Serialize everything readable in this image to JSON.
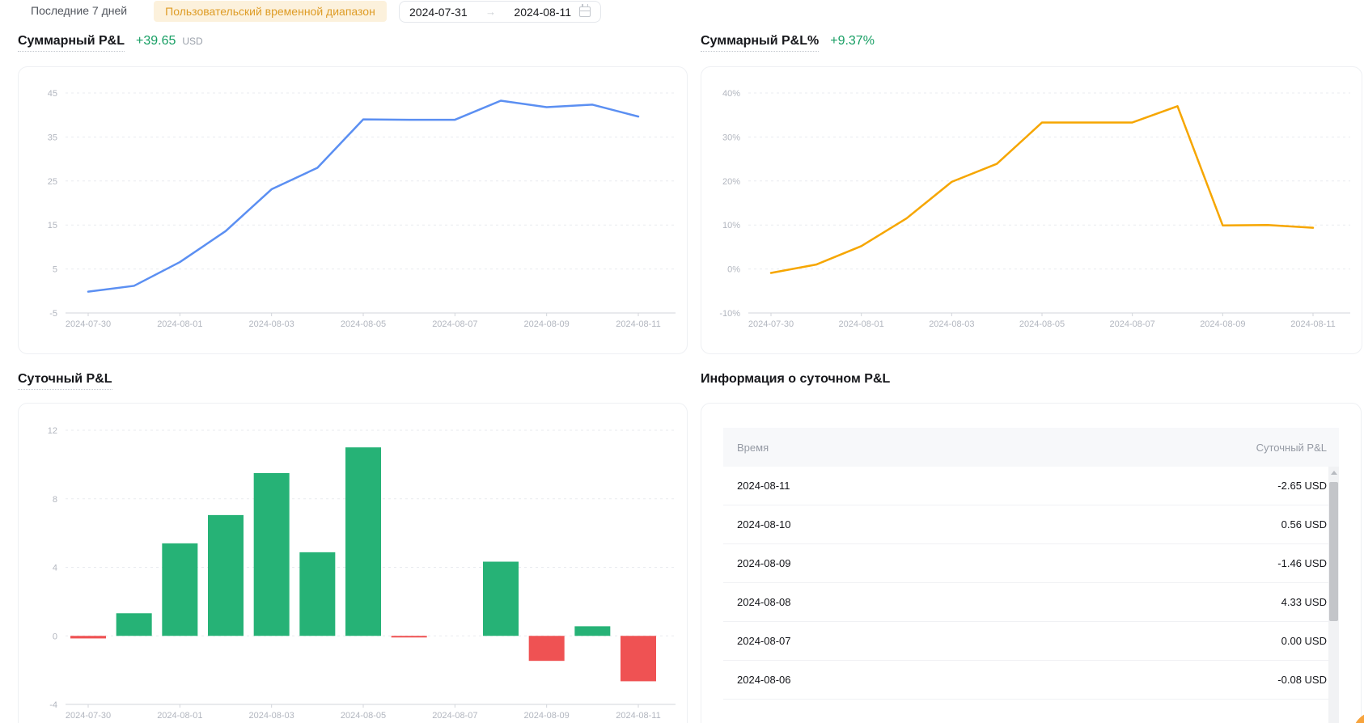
{
  "toolbar": {
    "last7_label": "Последние 7 дней",
    "custom_range_label": "Пользовательский временной диапазон",
    "date_from": "2024-07-31",
    "date_to": "2024-08-11",
    "arrow_glyph": "→"
  },
  "sections": {
    "total_pnl": {
      "title": "Суммарный P&L",
      "value": "+39.65",
      "unit": "USD"
    },
    "total_pnl_pct": {
      "title": "Суммарный P&L%",
      "value": "+9.37%"
    },
    "daily_pnl": {
      "title": "Суточный P&L"
    },
    "daily_info": {
      "title": "Информация о суточном P&L"
    }
  },
  "colors": {
    "accent_orange": "#de9c26",
    "accent_orange_bg": "#fcf1dc",
    "positive_green_text": "#169e63",
    "line_blue": "#5b8ff2",
    "line_orange": "#f6a600",
    "bar_green": "#26b276",
    "bar_red": "#ef5253",
    "fab_orange": "#f7a33c"
  },
  "chart_data": [
    {
      "id": "total_pnl_usd",
      "type": "line",
      "title": "Суммарный P&L",
      "unit": "USD",
      "color": "#5b8ff2",
      "grid": true,
      "ylim": [
        -5,
        45
      ],
      "y_ticks": [
        45,
        35,
        25,
        15,
        5,
        -5
      ],
      "y_tick_suffix": "",
      "x": [
        "2024-07-30",
        "2024-07-31",
        "2024-08-01",
        "2024-08-02",
        "2024-08-03",
        "2024-08-04",
        "2024-08-05",
        "2024-08-06",
        "2024-08-07",
        "2024-08-08",
        "2024-08-09",
        "2024-08-10",
        "2024-08-11"
      ],
      "values": [
        -0.15,
        1.17,
        6.57,
        13.62,
        23.12,
        28.0,
        39.0,
        38.92,
        38.92,
        43.25,
        41.79,
        42.35,
        39.65
      ],
      "x_tick_labels": [
        "2024-07-30",
        "2024-08-01",
        "2024-08-03",
        "2024-08-05",
        "2024-08-07",
        "2024-08-09",
        "2024-08-11"
      ]
    },
    {
      "id": "total_pnl_pct",
      "type": "line",
      "title": "Суммарный P&L%",
      "unit": "%",
      "color": "#f6a600",
      "grid": true,
      "ylim": [
        -10,
        40
      ],
      "y_ticks": [
        40,
        30,
        20,
        10,
        0,
        -10
      ],
      "y_tick_suffix": "%",
      "x": [
        "2024-07-30",
        "2024-07-31",
        "2024-08-01",
        "2024-08-02",
        "2024-08-03",
        "2024-08-04",
        "2024-08-05",
        "2024-08-06",
        "2024-08-07",
        "2024-08-08",
        "2024-08-09",
        "2024-08-10",
        "2024-08-11"
      ],
      "values": [
        -0.9,
        1.0,
        5.2,
        11.5,
        19.8,
        23.9,
        33.3,
        33.3,
        33.3,
        37.0,
        9.9,
        10.0,
        9.37
      ],
      "x_tick_labels": [
        "2024-07-30",
        "2024-08-01",
        "2024-08-03",
        "2024-08-05",
        "2024-08-07",
        "2024-08-09",
        "2024-08-11"
      ]
    },
    {
      "id": "daily_pnl",
      "type": "bar",
      "title": "Суточный P&L",
      "unit": "USD",
      "color_positive": "#26b276",
      "color_negative": "#ef5253",
      "grid": true,
      "ylim": [
        -4,
        12
      ],
      "y_ticks": [
        12,
        8,
        4,
        0,
        -4
      ],
      "y_tick_suffix": "",
      "x": [
        "2024-07-30",
        "2024-07-31",
        "2024-08-01",
        "2024-08-02",
        "2024-08-03",
        "2024-08-04",
        "2024-08-05",
        "2024-08-06",
        "2024-08-07",
        "2024-08-08",
        "2024-08-09",
        "2024-08-10",
        "2024-08-11"
      ],
      "values": [
        -0.15,
        1.32,
        5.4,
        7.05,
        9.5,
        4.88,
        11.0,
        -0.08,
        0.0,
        4.33,
        -1.46,
        0.56,
        -2.65
      ],
      "x_tick_labels": [
        "2024-07-30",
        "2024-08-01",
        "2024-08-03",
        "2024-08-05",
        "2024-08-07",
        "2024-08-09",
        "2024-08-11"
      ]
    }
  ],
  "table": {
    "columns": [
      "Время",
      "Суточный P&L"
    ],
    "rows": [
      {
        "date": "2024-08-11",
        "value": "-2.65 USD"
      },
      {
        "date": "2024-08-10",
        "value": "0.56 USD"
      },
      {
        "date": "2024-08-09",
        "value": "-1.46 USD"
      },
      {
        "date": "2024-08-08",
        "value": "4.33 USD"
      },
      {
        "date": "2024-08-07",
        "value": "0.00 USD"
      },
      {
        "date": "2024-08-06",
        "value": "-0.08 USD"
      }
    ]
  }
}
